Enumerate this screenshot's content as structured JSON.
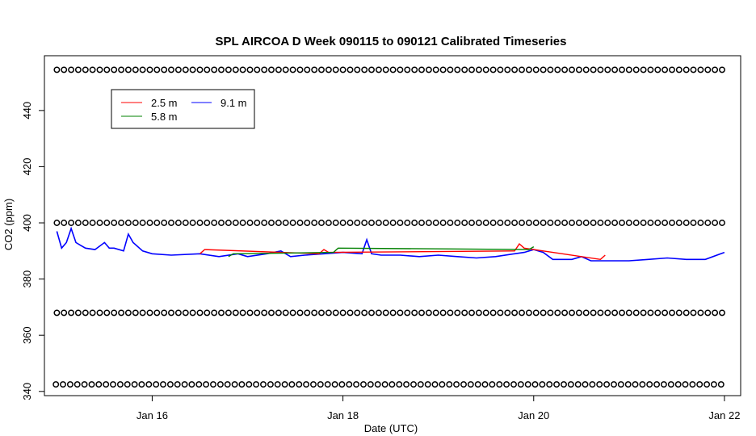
{
  "chart_data": {
    "type": "line",
    "title": "SPL AIRCOA D  Week 090115 to 090121  Calibrated Timeseries",
    "xlabel": "Date (UTC)",
    "ylabel": "CO2 (ppm)",
    "x_range_days": [
      15.0,
      22.0
    ],
    "xlim": [
      14.87,
      22.17
    ],
    "ylim": [
      338.5,
      459.5
    ],
    "x_ticks": [
      {
        "value": 16,
        "label": "Jan 16"
      },
      {
        "value": 18,
        "label": "Jan 18"
      },
      {
        "value": 20,
        "label": "Jan 20"
      },
      {
        "value": 22,
        "label": "Jan 22"
      }
    ],
    "y_ticks": [
      {
        "value": 340,
        "label": "340"
      },
      {
        "value": 360,
        "label": "360"
      },
      {
        "value": 380,
        "label": "380"
      },
      {
        "value": 400,
        "label": "400"
      },
      {
        "value": 420,
        "label": "420"
      },
      {
        "value": 440,
        "label": "440"
      }
    ],
    "legend": {
      "placement": "top-left",
      "entries": [
        {
          "name": "2.5 m",
          "color": "#ff0000"
        },
        {
          "name": "5.8 m",
          "color": "#008000"
        },
        {
          "name": "9.1 m",
          "color": "#0000ff"
        }
      ]
    },
    "series": [
      {
        "name": "9.1 m",
        "color": "#0000ff",
        "x": [
          15.0,
          15.05,
          15.1,
          15.15,
          15.2,
          15.25,
          15.3,
          15.4,
          15.5,
          15.55,
          15.6,
          15.7,
          15.75,
          15.8,
          15.9,
          16.0,
          16.2,
          16.5,
          16.7,
          16.9,
          17.0,
          17.2,
          17.35,
          17.45,
          17.6,
          17.8,
          18.0,
          18.2,
          18.25,
          18.3,
          18.4,
          18.6,
          18.8,
          19.0,
          19.2,
          19.4,
          19.6,
          19.8,
          19.9,
          20.0,
          20.1,
          20.2,
          20.4,
          20.5,
          20.6,
          20.8,
          21.0,
          21.2,
          21.4,
          21.6,
          21.8,
          22.0
        ],
        "y": [
          397,
          391,
          393,
          398,
          393,
          392,
          391,
          390.5,
          393,
          391,
          391,
          390,
          396,
          393,
          390,
          389,
          388.5,
          389,
          388,
          389,
          388,
          389,
          390,
          388,
          388.5,
          389,
          389.5,
          389,
          394,
          389,
          388.5,
          388.5,
          388,
          388.5,
          388,
          387.5,
          388,
          389,
          389.5,
          390.5,
          389.5,
          387,
          387,
          388,
          386.5,
          386.5,
          386.5,
          387,
          387.5,
          387,
          387,
          389.5
        ]
      },
      {
        "name": "2.5 m",
        "color": "#ff0000",
        "x": [
          16.5,
          16.55,
          17.75,
          17.8,
          17.85,
          19.8,
          19.85,
          19.9,
          20.7,
          20.75
        ],
        "y": [
          389,
          390.5,
          389,
          390.5,
          389.5,
          390,
          392.5,
          391,
          387,
          388.5
        ]
      },
      {
        "name": "5.8 m",
        "color": "#008000",
        "x": [
          16.8,
          16.85,
          17.9,
          17.95,
          19.95,
          20.0
        ],
        "y": [
          388,
          389,
          389.5,
          391,
          390.5,
          391.5
        ]
      }
    ],
    "reference_rows": [
      {
        "value": 454.5,
        "x_start": 15.0,
        "x_end": 22.0,
        "step": 0.075
      },
      {
        "value": 400,
        "x_start": 15.0,
        "x_end": 22.0,
        "step": 0.075
      },
      {
        "value": 368,
        "x_start": 15.0,
        "x_end": 22.0,
        "step": 0.075
      },
      {
        "value": 342.5,
        "x_start": 14.99,
        "x_end": 22.0,
        "step": 0.075
      }
    ]
  }
}
